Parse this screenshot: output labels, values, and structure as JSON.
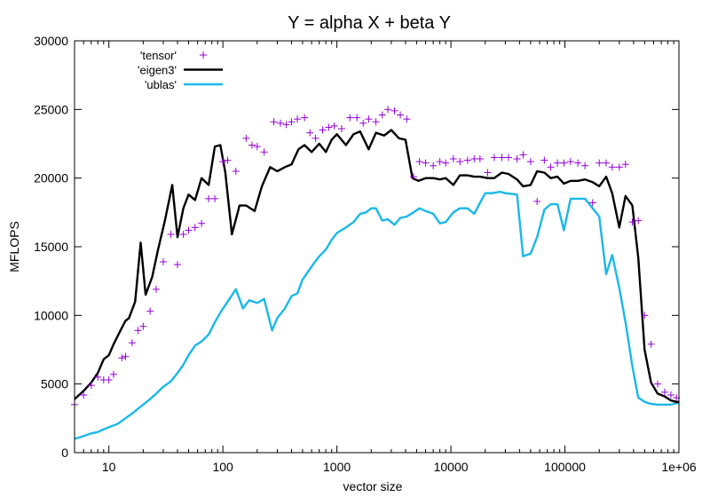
{
  "chart_data": {
    "type": "line",
    "title": "Y = alpha X + beta Y",
    "xlabel": "vector size",
    "ylabel": "MFLOPS",
    "x_scale": "log",
    "xlim": [
      5,
      1000000
    ],
    "ylim": [
      0,
      30000
    ],
    "x_ticks": [
      {
        "value": 10,
        "label": "10"
      },
      {
        "value": 100,
        "label": "100"
      },
      {
        "value": 1000,
        "label": "1000"
      },
      {
        "value": 10000,
        "label": "10000"
      },
      {
        "value": 100000,
        "label": "100000"
      },
      {
        "value": 1000000,
        "label": "1e+06"
      }
    ],
    "y_ticks": [
      {
        "value": 0,
        "label": "0"
      },
      {
        "value": 5000,
        "label": "5000"
      },
      {
        "value": 10000,
        "label": "10000"
      },
      {
        "value": 15000,
        "label": "15000"
      },
      {
        "value": 20000,
        "label": "20000"
      },
      {
        "value": 25000,
        "label": "25000"
      },
      {
        "value": 30000,
        "label": "30000"
      }
    ],
    "grid": false,
    "legend_position": "top-left",
    "series": [
      {
        "name": "'tensor'",
        "style": "points",
        "marker": "+",
        "color": "#9400d3",
        "points": [
          [
            5,
            3500
          ],
          [
            6,
            4200
          ],
          [
            7,
            4900
          ],
          [
            8,
            5500
          ],
          [
            9,
            5300
          ],
          [
            10,
            5300
          ],
          [
            11,
            5700
          ],
          [
            13,
            6900
          ],
          [
            14,
            7000
          ],
          [
            16,
            8000
          ],
          [
            18,
            8900
          ],
          [
            20,
            9200
          ],
          [
            23,
            10300
          ],
          [
            26,
            11900
          ],
          [
            30,
            13900
          ],
          [
            35,
            15900
          ],
          [
            40,
            13700
          ],
          [
            45,
            15900
          ],
          [
            50,
            16200
          ],
          [
            57,
            16400
          ],
          [
            65,
            16700
          ],
          [
            75,
            18500
          ],
          [
            85,
            18500
          ],
          [
            100,
            21200
          ],
          [
            110,
            21300
          ],
          [
            130,
            20500
          ],
          [
            160,
            22900
          ],
          [
            180,
            22400
          ],
          [
            200,
            22300
          ],
          [
            230,
            21900
          ],
          [
            280,
            24100
          ],
          [
            320,
            24000
          ],
          [
            360,
            23900
          ],
          [
            400,
            24100
          ],
          [
            450,
            24300
          ],
          [
            520,
            24400
          ],
          [
            580,
            23300
          ],
          [
            650,
            22900
          ],
          [
            750,
            23500
          ],
          [
            850,
            23700
          ],
          [
            950,
            23800
          ],
          [
            1100,
            23600
          ],
          [
            1300,
            24400
          ],
          [
            1500,
            24400
          ],
          [
            1700,
            24000
          ],
          [
            1900,
            24300
          ],
          [
            2200,
            24100
          ],
          [
            2500,
            24600
          ],
          [
            2800,
            25000
          ],
          [
            3200,
            24900
          ],
          [
            3600,
            24600
          ],
          [
            4100,
            24300
          ],
          [
            4700,
            20100
          ],
          [
            5300,
            21200
          ],
          [
            6000,
            21100
          ],
          [
            7000,
            20900
          ],
          [
            8000,
            21200
          ],
          [
            9000,
            21100
          ],
          [
            10500,
            21400
          ],
          [
            12000,
            21200
          ],
          [
            14000,
            21300
          ],
          [
            16000,
            21400
          ],
          [
            18000,
            21400
          ],
          [
            21000,
            20400
          ],
          [
            24000,
            21500
          ],
          [
            28000,
            21500
          ],
          [
            32000,
            21500
          ],
          [
            38000,
            21400
          ],
          [
            43000,
            21700
          ],
          [
            50000,
            21200
          ],
          [
            57000,
            18300
          ],
          [
            66000,
            21300
          ],
          [
            75000,
            20800
          ],
          [
            86000,
            21100
          ],
          [
            98000,
            21100
          ],
          [
            112000,
            21200
          ],
          [
            130000,
            21100
          ],
          [
            150000,
            20900
          ],
          [
            175000,
            18200
          ],
          [
            200000,
            21100
          ],
          [
            230000,
            21100
          ],
          [
            260000,
            20800
          ],
          [
            300000,
            20800
          ],
          [
            340000,
            21000
          ],
          [
            390000,
            16800
          ],
          [
            440000,
            16900
          ],
          [
            500000,
            10000
          ],
          [
            570000,
            7900
          ],
          [
            650000,
            5000
          ],
          [
            750000,
            4400
          ],
          [
            850000,
            4200
          ],
          [
            950000,
            4000
          ]
        ]
      },
      {
        "name": "'eigen3'",
        "style": "line",
        "color": "#000000",
        "points": [
          [
            5,
            3900
          ],
          [
            6,
            4500
          ],
          [
            7,
            5100
          ],
          [
            8,
            5800
          ],
          [
            9,
            6800
          ],
          [
            10,
            7100
          ],
          [
            11,
            7900
          ],
          [
            13,
            9100
          ],
          [
            14,
            9600
          ],
          [
            15,
            9800
          ],
          [
            17,
            11000
          ],
          [
            19,
            15300
          ],
          [
            21,
            11500
          ],
          [
            24,
            12800
          ],
          [
            27,
            14800
          ],
          [
            31,
            16900
          ],
          [
            36,
            19500
          ],
          [
            40,
            15700
          ],
          [
            45,
            17800
          ],
          [
            50,
            18800
          ],
          [
            57,
            18400
          ],
          [
            65,
            20000
          ],
          [
            75,
            19500
          ],
          [
            85,
            22300
          ],
          [
            95,
            22400
          ],
          [
            105,
            20400
          ],
          [
            120,
            15900
          ],
          [
            140,
            18000
          ],
          [
            160,
            18000
          ],
          [
            190,
            17600
          ],
          [
            220,
            19400
          ],
          [
            260,
            20800
          ],
          [
            300,
            20500
          ],
          [
            350,
            20800
          ],
          [
            400,
            21000
          ],
          [
            460,
            22100
          ],
          [
            520,
            22400
          ],
          [
            600,
            21900
          ],
          [
            700,
            22500
          ],
          [
            800,
            21900
          ],
          [
            900,
            22800
          ],
          [
            1000,
            23200
          ],
          [
            1200,
            22400
          ],
          [
            1400,
            23200
          ],
          [
            1600,
            23400
          ],
          [
            1900,
            22100
          ],
          [
            2200,
            23300
          ],
          [
            2600,
            23100
          ],
          [
            3000,
            23500
          ],
          [
            3500,
            22900
          ],
          [
            4000,
            22800
          ],
          [
            4600,
            20000
          ],
          [
            5200,
            19800
          ],
          [
            6000,
            20000
          ],
          [
            7000,
            20000
          ],
          [
            8000,
            19900
          ],
          [
            9000,
            20000
          ],
          [
            10500,
            19500
          ],
          [
            12000,
            20200
          ],
          [
            14000,
            20200
          ],
          [
            16000,
            20100
          ],
          [
            18000,
            20100
          ],
          [
            21000,
            20000
          ],
          [
            24000,
            20000
          ],
          [
            28000,
            20400
          ],
          [
            32000,
            20300
          ],
          [
            38000,
            19900
          ],
          [
            43000,
            19400
          ],
          [
            50000,
            19500
          ],
          [
            57000,
            20500
          ],
          [
            66000,
            20400
          ],
          [
            75000,
            20000
          ],
          [
            86000,
            20100
          ],
          [
            98000,
            19600
          ],
          [
            112000,
            19800
          ],
          [
            130000,
            19800
          ],
          [
            150000,
            19900
          ],
          [
            175000,
            19700
          ],
          [
            200000,
            19400
          ],
          [
            230000,
            20100
          ],
          [
            260000,
            18900
          ],
          [
            300000,
            16400
          ],
          [
            340000,
            18700
          ],
          [
            390000,
            18000
          ],
          [
            440000,
            14200
          ],
          [
            500000,
            7500
          ],
          [
            570000,
            5100
          ],
          [
            650000,
            4300
          ],
          [
            750000,
            4100
          ],
          [
            850000,
            3800
          ],
          [
            950000,
            3700
          ],
          [
            1000000,
            3700
          ]
        ]
      },
      {
        "name": "'ublas'",
        "style": "line",
        "color": "#1ab8e8",
        "points": [
          [
            5,
            1000
          ],
          [
            6,
            1200
          ],
          [
            7,
            1400
          ],
          [
            8,
            1500
          ],
          [
            9,
            1700
          ],
          [
            10,
            1850
          ],
          [
            12,
            2100
          ],
          [
            14,
            2500
          ],
          [
            16,
            2850
          ],
          [
            18,
            3200
          ],
          [
            20,
            3500
          ],
          [
            23,
            3900
          ],
          [
            26,
            4300
          ],
          [
            30,
            4800
          ],
          [
            35,
            5200
          ],
          [
            40,
            5800
          ],
          [
            45,
            6400
          ],
          [
            50,
            7100
          ],
          [
            57,
            7800
          ],
          [
            65,
            8100
          ],
          [
            75,
            8600
          ],
          [
            85,
            9500
          ],
          [
            95,
            10200
          ],
          [
            110,
            11000
          ],
          [
            130,
            11900
          ],
          [
            150,
            10500
          ],
          [
            170,
            11100
          ],
          [
            200,
            10900
          ],
          [
            230,
            11200
          ],
          [
            270,
            8900
          ],
          [
            300,
            9800
          ],
          [
            350,
            10500
          ],
          [
            400,
            11400
          ],
          [
            450,
            11600
          ],
          [
            500,
            12600
          ],
          [
            560,
            13200
          ],
          [
            630,
            13800
          ],
          [
            700,
            14300
          ],
          [
            800,
            14800
          ],
          [
            900,
            15500
          ],
          [
            1000,
            16000
          ],
          [
            1200,
            16400
          ],
          [
            1400,
            16800
          ],
          [
            1600,
            17400
          ],
          [
            1800,
            17500
          ],
          [
            2000,
            17800
          ],
          [
            2200,
            17800
          ],
          [
            2500,
            16900
          ],
          [
            2800,
            17000
          ],
          [
            3200,
            16600
          ],
          [
            3600,
            17100
          ],
          [
            4100,
            17200
          ],
          [
            4700,
            17500
          ],
          [
            5300,
            17800
          ],
          [
            6000,
            17600
          ],
          [
            7000,
            17400
          ],
          [
            8000,
            16700
          ],
          [
            9000,
            16800
          ],
          [
            10500,
            17500
          ],
          [
            12000,
            17800
          ],
          [
            14000,
            17800
          ],
          [
            16000,
            17400
          ],
          [
            18000,
            18200
          ],
          [
            20000,
            18900
          ],
          [
            23000,
            18900
          ],
          [
            27000,
            19000
          ],
          [
            30000,
            18900
          ],
          [
            38000,
            18800
          ],
          [
            43000,
            14300
          ],
          [
            50000,
            14500
          ],
          [
            57000,
            15700
          ],
          [
            66000,
            17700
          ],
          [
            75000,
            18100
          ],
          [
            86000,
            18100
          ],
          [
            98000,
            16200
          ],
          [
            112000,
            18500
          ],
          [
            130000,
            18500
          ],
          [
            150000,
            18500
          ],
          [
            175000,
            17800
          ],
          [
            200000,
            17200
          ],
          [
            230000,
            13000
          ],
          [
            260000,
            14400
          ],
          [
            300000,
            12000
          ],
          [
            340000,
            9500
          ],
          [
            390000,
            6300
          ],
          [
            440000,
            4000
          ],
          [
            500000,
            3700
          ],
          [
            570000,
            3550
          ],
          [
            650000,
            3500
          ],
          [
            750000,
            3500
          ],
          [
            850000,
            3500
          ],
          [
            950000,
            3600
          ],
          [
            1000000,
            3600
          ]
        ]
      }
    ]
  }
}
